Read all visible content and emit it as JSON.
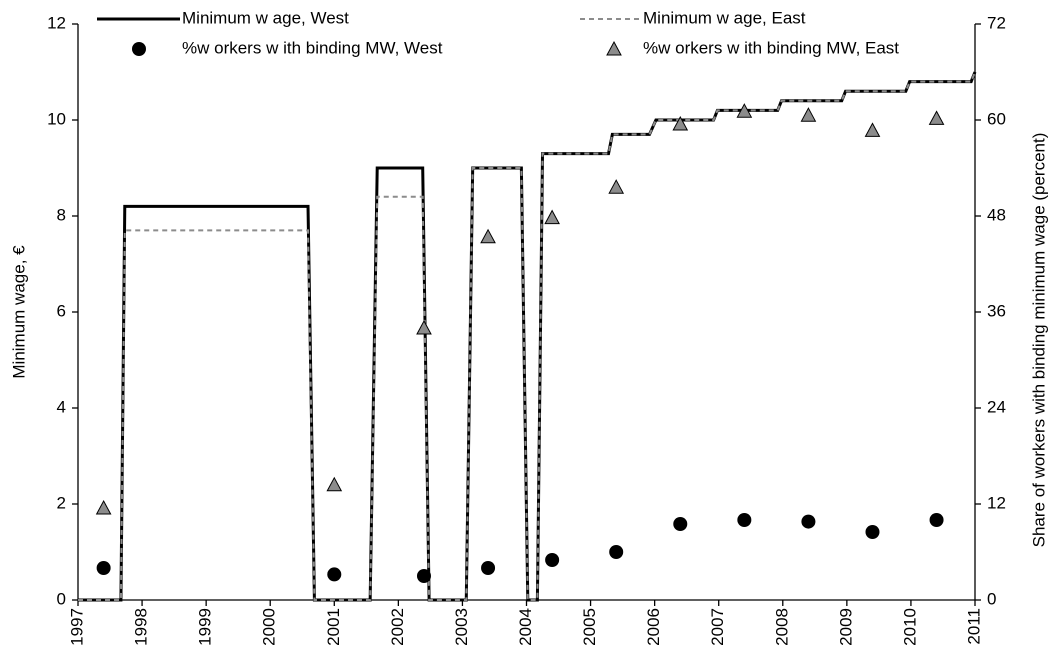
{
  "chart_data": {
    "type": "line",
    "y_label": "Minimum wage, €",
    "y2_label": "Share of workers with binding minimum wage (percent)",
    "xlim": [
      1997,
      2011
    ],
    "xticks": [
      1997,
      1998,
      1999,
      2000,
      2001,
      2002,
      2003,
      2004,
      2005,
      2006,
      2007,
      2008,
      2009,
      2010,
      2011
    ],
    "ylim": [
      0,
      12
    ],
    "yticks": [
      0,
      2,
      4,
      6,
      8,
      10,
      12
    ],
    "y2lim": [
      0,
      72
    ],
    "y2ticks": [
      0,
      12,
      24,
      36,
      48,
      60,
      72
    ],
    "grid": false,
    "series": [
      {
        "name": "Minimum w age, West",
        "color": "#000000",
        "style": "solid",
        "x": [
          1997.0,
          1997.67,
          1997.73,
          2000.59,
          2000.69,
          2001.56,
          2001.67,
          2002.38,
          2002.48,
          2003.06,
          2003.16,
          2003.92,
          2004.02,
          2004.17,
          2004.25,
          2005.28,
          2005.34,
          2005.92,
          2006.02,
          2006.92,
          2006.98,
          2007.92,
          2007.98,
          2008.92,
          2008.98,
          2009.92,
          2009.98,
          2010.94,
          2011.0
        ],
        "values": [
          0,
          0,
          8.2,
          8.2,
          0,
          0,
          9.0,
          9.0,
          0,
          0,
          9.0,
          9.0,
          0,
          0,
          9.3,
          9.3,
          9.7,
          9.7,
          10.0,
          10.0,
          10.2,
          10.2,
          10.4,
          10.4,
          10.6,
          10.6,
          10.8,
          10.8,
          11.0
        ]
      },
      {
        "name": "Minimum w age, East",
        "color": "#8c8c8c",
        "style": "dashed",
        "x": [
          1997.0,
          1997.67,
          1997.73,
          2000.59,
          2000.69,
          2001.56,
          2001.67,
          2002.38,
          2002.48,
          2003.06,
          2003.16,
          2003.92,
          2004.02,
          2004.17,
          2004.25,
          2005.28,
          2005.34,
          2005.92,
          2006.02,
          2006.92,
          2006.98,
          2007.92,
          2007.98,
          2008.92,
          2008.98,
          2009.92,
          2009.98,
          2010.94,
          2011.0
        ],
        "values": [
          0,
          0,
          7.7,
          7.7,
          0,
          0,
          8.4,
          8.4,
          0,
          0,
          9.0,
          9.0,
          0,
          0,
          9.3,
          9.3,
          9.7,
          9.7,
          10.0,
          10.0,
          10.2,
          10.2,
          10.4,
          10.4,
          10.6,
          10.6,
          10.8,
          10.8,
          11.0
        ]
      },
      {
        "name": "%w orkers w ith binding MW, West",
        "color": "#000000",
        "marker": "circle",
        "axis": "y2",
        "x": [
          1997.4,
          2001.0,
          2002.4,
          2003.4,
          2004.4,
          2005.4,
          2006.4,
          2007.4,
          2008.4,
          2009.4,
          2010.4
        ],
        "values": [
          4.0,
          3.2,
          3.0,
          4.0,
          5.0,
          6.0,
          9.5,
          10.0,
          9.8,
          8.5,
          10.0
        ]
      },
      {
        "name": "%w orkers w ith binding MW, East",
        "color": "#8c8c8c",
        "marker": "triangle",
        "axis": "y2",
        "x": [
          1997.4,
          2001.0,
          2002.4,
          2003.4,
          2004.4,
          2005.4,
          2006.4,
          2007.4,
          2008.4,
          2009.4,
          2010.4
        ],
        "values": [
          11.5,
          14.4,
          34.0,
          45.4,
          47.8,
          51.6,
          59.5,
          61.1,
          60.6,
          58.7,
          60.2
        ]
      }
    ]
  }
}
